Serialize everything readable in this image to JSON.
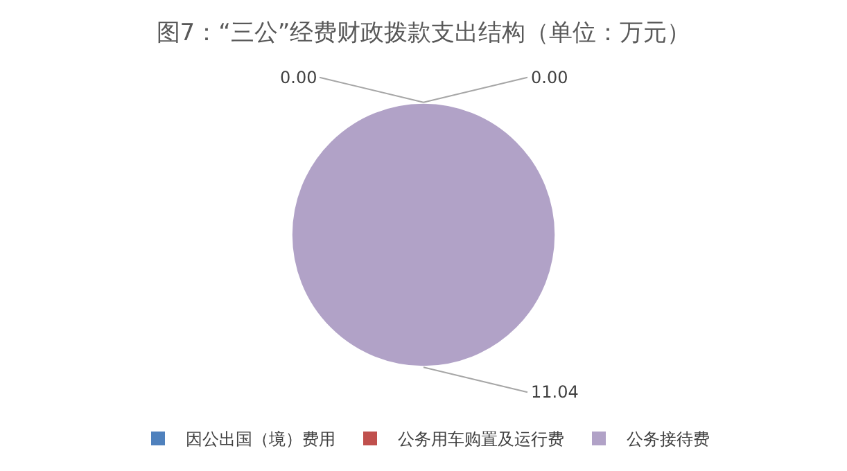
{
  "chart_data": {
    "type": "pie",
    "title": "图7：“三公”经费财政拨款支出结构（单位：万元）",
    "categories": [
      "因公出国（境）费用",
      "公务用车购置及运行费",
      "公务接待费"
    ],
    "values": [
      0.0,
      0.0,
      11.04
    ],
    "value_labels": [
      "0.00",
      "0.00",
      "11.04"
    ],
    "colors": [
      "#4f81bd",
      "#c0504d",
      "#b1a2c7"
    ],
    "legend": "bottom"
  }
}
